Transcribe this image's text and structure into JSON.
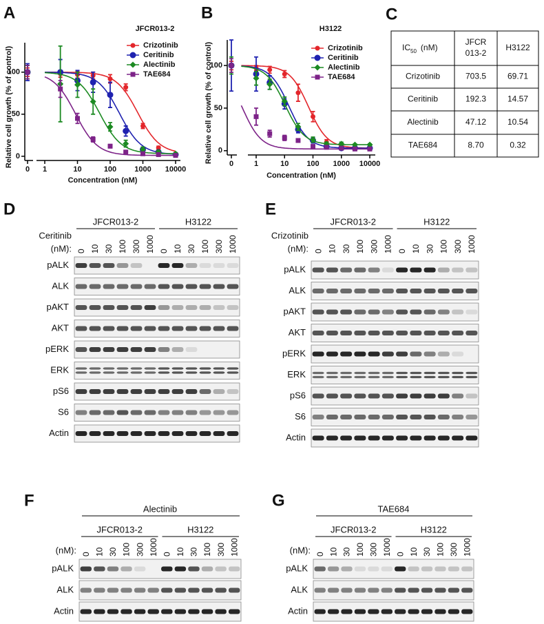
{
  "chart_data": [
    {
      "type": "scatter",
      "label": "A",
      "title": "JFCR013-2",
      "y_label": "Relative cell growth (% of control)",
      "x_label": "Concentration (nM)",
      "log_x": true,
      "x": [
        0,
        3,
        10,
        30,
        100,
        300,
        1000,
        3000,
        10000
      ],
      "xlim": [
        0,
        10000
      ],
      "xticks": [
        0,
        1,
        10,
        100,
        1000,
        10000
      ],
      "ylim": [
        -5,
        135
      ],
      "yticks": [
        0,
        50,
        100
      ],
      "series": [
        {
          "name": "Crizotinib",
          "color": "#e3262b",
          "marker": "circle",
          "values": [
            100,
            98,
            97,
            96,
            92,
            82,
            36,
            10,
            3
          ],
          "errors": [
            5,
            4,
            4,
            4,
            5,
            4,
            3,
            2,
            1
          ]
        },
        {
          "name": "Ceritinib",
          "color": "#1f22b0",
          "marker": "circle",
          "values": [
            100,
            100,
            90,
            88,
            73,
            30,
            8,
            5,
            2
          ],
          "errors": [
            10,
            15,
            12,
            12,
            15,
            6,
            3,
            2,
            1
          ]
        },
        {
          "name": "Alectinib",
          "color": "#1c8a22",
          "marker": "diamond",
          "values": [
            100,
            86,
            85,
            65,
            35,
            15,
            8,
            5,
            3
          ],
          "errors": [
            8,
            45,
            15,
            15,
            5,
            4,
            3,
            2,
            1
          ]
        },
        {
          "name": "TAE684",
          "color": "#7d2388",
          "marker": "square",
          "values": [
            100,
            80,
            45,
            20,
            12,
            5,
            3,
            2,
            1
          ],
          "errors": [
            8,
            10,
            6,
            3,
            2,
            2,
            1,
            1,
            1
          ]
        }
      ]
    },
    {
      "type": "scatter",
      "label": "B",
      "title": "H3122",
      "y_label": "Relative cell growth (% of control)",
      "x_label": "Concentration (nM)",
      "log_x": true,
      "x": [
        0,
        1,
        3,
        10,
        30,
        100,
        300,
        1000,
        3000,
        10000
      ],
      "xlim": [
        0,
        10000
      ],
      "xticks": [
        0,
        1,
        10,
        100,
        1000,
        10000
      ],
      "ylim": [
        -5,
        130
      ],
      "yticks": [
        0,
        50,
        100
      ],
      "series": [
        {
          "name": "Crizotinib",
          "color": "#e3262b",
          "marker": "circle",
          "values": [
            100,
            97,
            95,
            90,
            68,
            40,
            10,
            5,
            3,
            3
          ],
          "errors": [
            5,
            3,
            4,
            4,
            10,
            6,
            3,
            2,
            1,
            1
          ]
        },
        {
          "name": "Ceritinib",
          "color": "#1f22b0",
          "marker": "circle",
          "values": [
            100,
            90,
            80,
            55,
            25,
            12,
            5,
            3,
            3,
            3
          ],
          "errors": [
            30,
            20,
            8,
            6,
            4,
            3,
            2,
            1,
            1,
            1
          ]
        },
        {
          "name": "Alectinib",
          "color": "#1c8a22",
          "marker": "diamond",
          "values": [
            100,
            85,
            78,
            58,
            28,
            13,
            8,
            8,
            7,
            7
          ],
          "errors": [
            10,
            8,
            6,
            5,
            4,
            3,
            2,
            2,
            1,
            1
          ]
        },
        {
          "name": "TAE684",
          "color": "#7d2388",
          "marker": "square",
          "values": [
            100,
            40,
            20,
            15,
            12,
            5,
            4,
            3,
            2,
            2
          ],
          "errors": [
            8,
            10,
            4,
            3,
            2,
            2,
            1,
            1,
            1,
            1
          ]
        }
      ]
    }
  ],
  "table": {
    "label": "C",
    "header": [
      "IC",
      "50",
      "(nM)",
      [
        "JFCR",
        "013-2"
      ],
      "H3122"
    ],
    "rows": [
      [
        "Crizotinib",
        "703.5",
        "69.71"
      ],
      [
        "Ceritinib",
        "192.3",
        "14.57"
      ],
      [
        "Alectinib",
        "47.12",
        "10.54"
      ],
      [
        "TAE684",
        "8.70",
        "0.32"
      ]
    ]
  },
  "blots": [
    {
      "label": "D",
      "drug": "Ceritinib",
      "unit": "(nM):",
      "groups": [
        "JFCR013-2",
        "H3122"
      ],
      "doses": [
        0,
        10,
        30,
        100,
        300,
        1000
      ],
      "rows": [
        "pALK",
        "ALK",
        "pAKT",
        "AKT",
        "pERK",
        "ERK",
        "pS6",
        "S6",
        "Actin"
      ]
    },
    {
      "label": "E",
      "drug": "Crizotinib",
      "unit": "(nM):",
      "groups": [
        "JFCR013-2",
        "H3122"
      ],
      "doses": [
        0,
        10,
        30,
        100,
        300,
        1000
      ],
      "rows": [
        "pALK",
        "ALK",
        "pAKT",
        "AKT",
        "pERK",
        "ERK",
        "pS6",
        "S6",
        "Actin"
      ]
    },
    {
      "label": "F",
      "title": "Alectinib",
      "unit": "(nM):",
      "groups": [
        "JFCR013-2",
        "H3122"
      ],
      "doses": [
        0,
        10,
        30,
        100,
        300,
        1000
      ],
      "rows": [
        "pALK",
        "ALK",
        "Actin"
      ]
    },
    {
      "label": "G",
      "title": "TAE684",
      "unit": "(nM):",
      "groups": [
        "JFCR013-2",
        "H3122"
      ],
      "doses": [
        0,
        10,
        30,
        100,
        300,
        1000
      ],
      "rows": [
        "pALK",
        "ALK",
        "Actin"
      ]
    }
  ]
}
